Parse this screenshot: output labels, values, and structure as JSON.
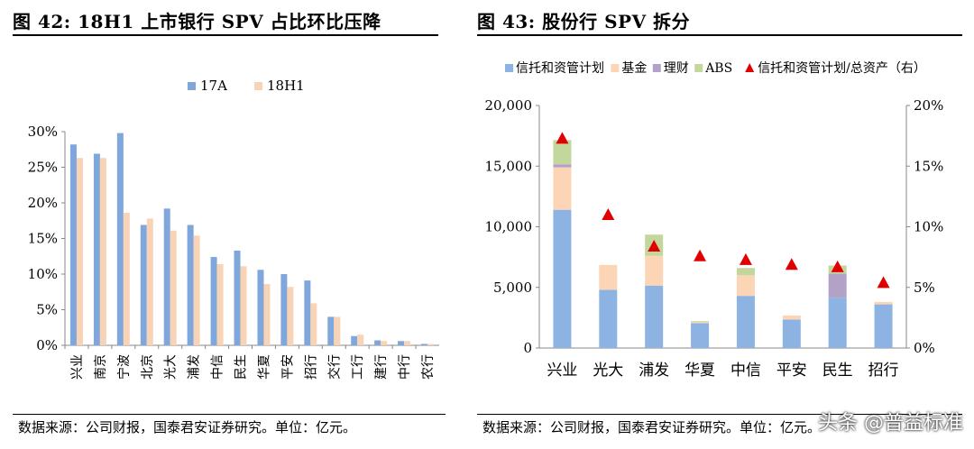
{
  "left": {
    "title": "图 42:  18H1 上市银行 SPV 占比环比压降",
    "source": "数据来源：公司财报，国泰君安证券研究。单位：亿元。",
    "chart_data": {
      "type": "bar",
      "categories": [
        "兴业",
        "南京",
        "宁波",
        "北京",
        "光大",
        "浦发",
        "中信",
        "民生",
        "华夏",
        "平安",
        "招行",
        "交行",
        "工行",
        "建行",
        "中行",
        "农行"
      ],
      "series": [
        {
          "name": "17A",
          "color": "#7fa7dc",
          "values": [
            28.2,
            26.9,
            29.8,
            16.9,
            19.2,
            16.9,
            12.4,
            13.3,
            10.6,
            10.0,
            9.1,
            4.0,
            1.3,
            0.7,
            0.6,
            0.2
          ]
        },
        {
          "name": "18H1",
          "color": "#f9d3b5",
          "values": [
            26.3,
            26.3,
            18.6,
            17.8,
            16.1,
            15.4,
            11.4,
            11.1,
            8.6,
            8.2,
            5.9,
            4.0,
            1.5,
            0.6,
            0.6,
            0.2
          ]
        }
      ],
      "ylim": [
        0,
        30
      ],
      "yticks": [
        "0%",
        "5%",
        "10%",
        "15%",
        "20%",
        "25%",
        "30%"
      ],
      "legend": "top-center",
      "grid": false
    }
  },
  "right": {
    "title": "图 43:  股份行 SPV 拆分",
    "source": "数据来源：公司财报，国泰君安证券研究。单位：亿元。",
    "chart_data": {
      "type": "bar",
      "stacked": true,
      "categories": [
        "兴业",
        "光大",
        "浦发",
        "华夏",
        "中信",
        "平安",
        "民生",
        "招行"
      ],
      "series": [
        {
          "name": "信托和资管计划",
          "color": "#8db3e2",
          "values": [
            11400,
            4800,
            5150,
            2050,
            4300,
            2350,
            4150,
            3600
          ]
        },
        {
          "name": "基金",
          "color": "#fbd5b5",
          "values": [
            3500,
            2050,
            2450,
            120,
            1700,
            330,
            0,
            200
          ]
        },
        {
          "name": "理财",
          "color": "#b3a2c7",
          "values": [
            250,
            0,
            0,
            0,
            0,
            0,
            2000,
            0
          ]
        },
        {
          "name": "ABS",
          "color": "#c3d69b",
          "values": [
            2000,
            0,
            1750,
            60,
            600,
            0,
            650,
            0
          ]
        }
      ],
      "line_series": {
        "name": "信托和资管计划/总资产（右）",
        "color": "#e00000",
        "values": [
          17.3,
          11.0,
          8.4,
          7.6,
          7.3,
          6.9,
          6.7,
          5.4
        ]
      },
      "ylim": [
        0,
        20000
      ],
      "yticks": [
        "0",
        "5,000",
        "10,000",
        "15,000",
        "20,000"
      ],
      "y2lim": [
        0,
        20
      ],
      "y2ticks": [
        "0%",
        "5%",
        "10%",
        "15%",
        "20%"
      ],
      "legend": "top",
      "grid": false
    }
  },
  "watermark": "头条 @普益标准"
}
